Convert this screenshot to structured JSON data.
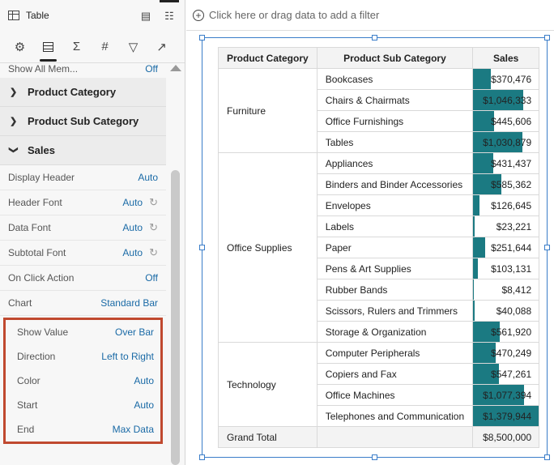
{
  "panel": {
    "title": "Table",
    "tabs": [
      "gear-icon",
      "table-icon",
      "sigma-icon",
      "hash-icon",
      "filter-icon",
      "trend-icon"
    ],
    "show_all": {
      "label": "Show All Mem...",
      "value": "Off"
    },
    "sections": {
      "category": "Product Category",
      "subcategory": "Product Sub Category",
      "sales": "Sales"
    },
    "props": [
      {
        "label": "Display Header",
        "value": "Auto",
        "reset": false
      },
      {
        "label": "Header Font",
        "value": "Auto",
        "reset": true
      },
      {
        "label": "Data Font",
        "value": "Auto",
        "reset": true
      },
      {
        "label": "Subtotal Font",
        "value": "Auto",
        "reset": true
      },
      {
        "label": "On Click Action",
        "value": "Off",
        "reset": false
      },
      {
        "label": "Chart",
        "value": "Standard Bar",
        "reset": false
      }
    ],
    "highlighted_props": [
      {
        "label": "Show Value",
        "value": "Over Bar"
      },
      {
        "label": "Direction",
        "value": "Left to Right"
      },
      {
        "label": "Color",
        "value": "Auto"
      },
      {
        "label": "Start",
        "value": "Auto"
      },
      {
        "label": "End",
        "value": "Max Data"
      }
    ]
  },
  "filterbar": {
    "placeholder": "Click here or drag data to add a filter"
  },
  "table": {
    "headers": [
      "Product Category",
      "Product Sub Category",
      "Sales"
    ],
    "max_sales": 1379944,
    "bar_color": "#1b7a82",
    "groups": [
      {
        "category": "Furniture",
        "rows": [
          {
            "sub": "Bookcases",
            "sales": 370476,
            "label": "$370,476"
          },
          {
            "sub": "Chairs & Chairmats",
            "sales": 1046333,
            "label": "$1,046,333"
          },
          {
            "sub": "Office Furnishings",
            "sales": 445606,
            "label": "$445,606"
          },
          {
            "sub": "Tables",
            "sales": 1030879,
            "label": "$1,030,879"
          }
        ]
      },
      {
        "category": "Office Supplies",
        "rows": [
          {
            "sub": "Appliances",
            "sales": 431437,
            "label": "$431,437"
          },
          {
            "sub": "Binders and Binder Accessories",
            "sales": 585362,
            "label": "$585,362"
          },
          {
            "sub": "Envelopes",
            "sales": 126645,
            "label": "$126,645"
          },
          {
            "sub": "Labels",
            "sales": 23221,
            "label": "$23,221"
          },
          {
            "sub": "Paper",
            "sales": 251644,
            "label": "$251,644"
          },
          {
            "sub": "Pens & Art Supplies",
            "sales": 103131,
            "label": "$103,131"
          },
          {
            "sub": "Rubber Bands",
            "sales": 8412,
            "label": "$8,412"
          },
          {
            "sub": "Scissors, Rulers and Trimmers",
            "sales": 40088,
            "label": "$40,088"
          },
          {
            "sub": "Storage & Organization",
            "sales": 561920,
            "label": "$561,920"
          }
        ]
      },
      {
        "category": "Technology",
        "rows": [
          {
            "sub": "Computer Peripherals",
            "sales": 470249,
            "label": "$470,249"
          },
          {
            "sub": "Copiers and Fax",
            "sales": 547261,
            "label": "$547,261"
          },
          {
            "sub": "Office Machines",
            "sales": 1077394,
            "label": "$1,077,394"
          },
          {
            "sub": "Telephones and Communication",
            "sales": 1379944,
            "label": "$1,379,944"
          }
        ]
      }
    ],
    "total": {
      "label": "Grand Total",
      "value": "$8,500,000"
    }
  }
}
